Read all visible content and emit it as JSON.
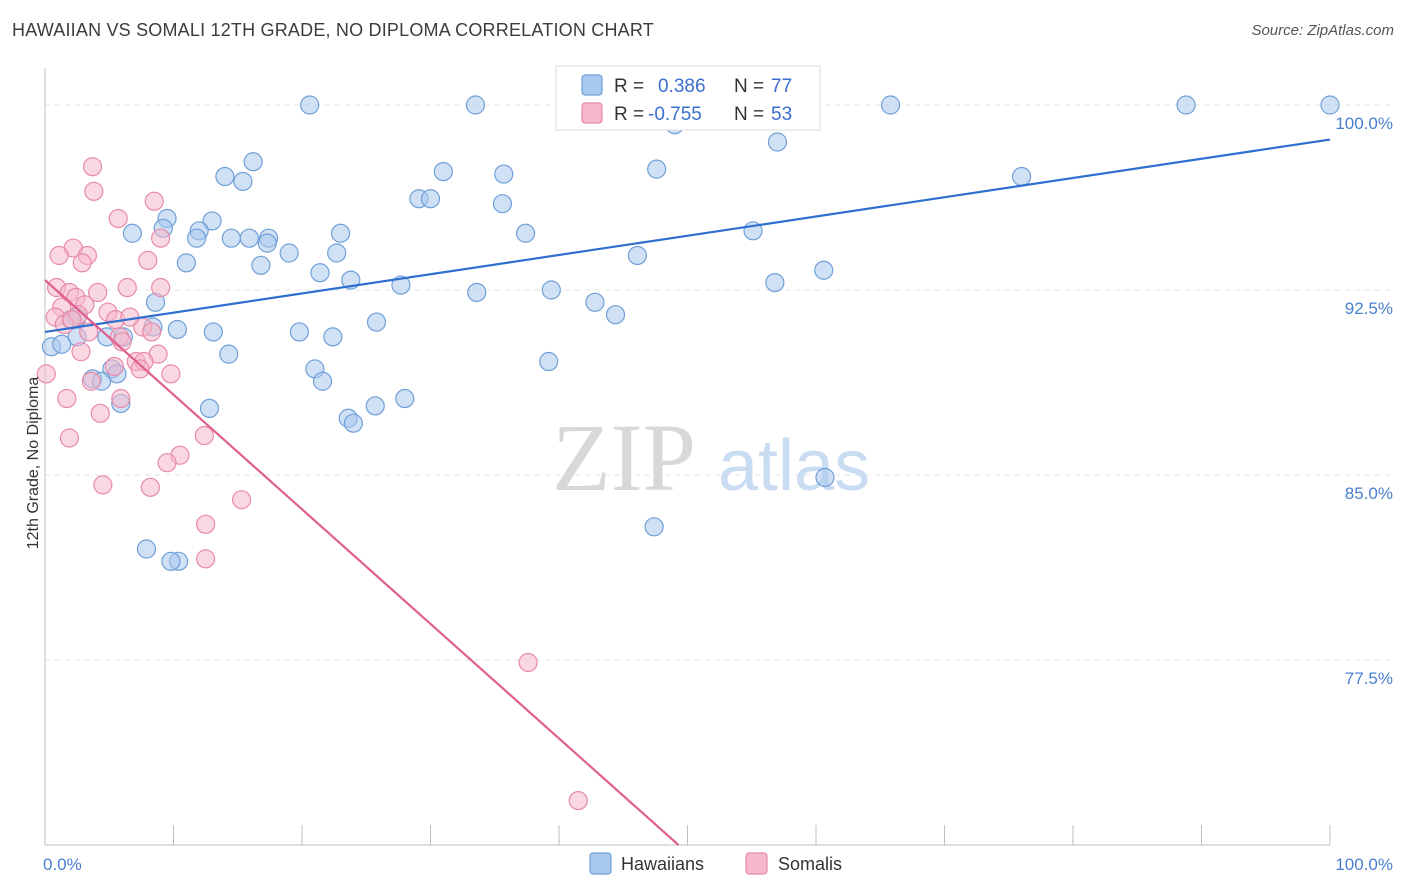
{
  "title": "HAWAIIAN VS SOMALI 12TH GRADE, NO DIPLOMA CORRELATION CHART",
  "source": "Source: ZipAtlas.com",
  "watermark": {
    "zip": "ZIP",
    "atlas": "atlas"
  },
  "colors": {
    "hawaiian_fill": "#a9c8ee",
    "hawaiian_stroke": "#6f9fd8",
    "hawaiian_line": "#2f6fcf",
    "somali_fill": "#f5b8cb",
    "somali_stroke": "#e88aa8",
    "somali_line": "#e0608e",
    "grid": "#e3e3e3",
    "tick_label": "#4a7fcf"
  },
  "legend": {
    "r_label": "R =",
    "n_label": "N =",
    "hawaiian": {
      "r": "0.386",
      "n": "77"
    },
    "somali": {
      "r": "-0.755",
      "n": "53"
    }
  },
  "chart_data": {
    "type": "scatter",
    "title": "HAWAIIAN VS SOMALI 12TH GRADE, NO DIPLOMA CORRELATION CHART",
    "xlabel": "",
    "ylabel": "12th Grade, No Diploma",
    "xlim": [
      0,
      100
    ],
    "ylim": [
      70.0,
      101.5
    ],
    "x_tick_labels": [
      "0.0%",
      "100.0%"
    ],
    "y_ticks": [
      77.5,
      85.0,
      92.5,
      100.0
    ],
    "y_tick_labels": [
      "77.5%",
      "85.0%",
      "92.5%",
      "100.0%"
    ],
    "grid": true,
    "legend_position": "top-center",
    "series": [
      {
        "name": "Hawaiians",
        "trend": {
          "x": [
            0,
            100
          ],
          "y": [
            90.8,
            98.6
          ]
        },
        "points": [
          [
            20.6,
            100.0
          ],
          [
            33.5,
            100.0
          ],
          [
            65.8,
            100.0
          ],
          [
            88.8,
            100.0
          ],
          [
            100.0,
            100.0
          ],
          [
            49.0,
            99.2
          ],
          [
            57.0,
            98.5
          ],
          [
            16.2,
            97.7
          ],
          [
            47.6,
            97.4
          ],
          [
            31.0,
            97.3
          ],
          [
            14.0,
            97.1
          ],
          [
            35.7,
            97.2
          ],
          [
            15.4,
            96.9
          ],
          [
            76.0,
            97.1
          ],
          [
            29.1,
            96.2
          ],
          [
            30.0,
            96.2
          ],
          [
            35.6,
            96.0
          ],
          [
            9.5,
            95.4
          ],
          [
            13.0,
            95.3
          ],
          [
            9.2,
            95.0
          ],
          [
            12.0,
            94.9
          ],
          [
            6.8,
            94.8
          ],
          [
            11.8,
            94.6
          ],
          [
            14.5,
            94.6
          ],
          [
            15.9,
            94.6
          ],
          [
            17.4,
            94.6
          ],
          [
            23.0,
            94.8
          ],
          [
            37.4,
            94.8
          ],
          [
            55.1,
            94.9
          ],
          [
            17.3,
            94.4
          ],
          [
            19.0,
            94.0
          ],
          [
            22.7,
            94.0
          ],
          [
            46.1,
            93.9
          ],
          [
            11.0,
            93.6
          ],
          [
            16.8,
            93.5
          ],
          [
            21.4,
            93.2
          ],
          [
            60.6,
            93.3
          ],
          [
            23.8,
            92.9
          ],
          [
            27.7,
            92.7
          ],
          [
            33.6,
            92.4
          ],
          [
            39.4,
            92.5
          ],
          [
            56.8,
            92.8
          ],
          [
            8.6,
            92.0
          ],
          [
            42.8,
            92.0
          ],
          [
            44.4,
            91.5
          ],
          [
            2.0,
            91.3
          ],
          [
            25.8,
            91.2
          ],
          [
            10.3,
            90.9
          ],
          [
            8.4,
            91.0
          ],
          [
            13.1,
            90.8
          ],
          [
            19.8,
            90.8
          ],
          [
            22.4,
            90.6
          ],
          [
            2.5,
            90.6
          ],
          [
            4.8,
            90.6
          ],
          [
            6.1,
            90.6
          ],
          [
            0.5,
            90.2
          ],
          [
            14.3,
            89.9
          ],
          [
            39.2,
            89.6
          ],
          [
            21.0,
            89.3
          ],
          [
            3.7,
            88.9
          ],
          [
            5.2,
            89.3
          ],
          [
            5.6,
            89.1
          ],
          [
            4.4,
            88.8
          ],
          [
            21.6,
            88.8
          ],
          [
            28.0,
            88.1
          ],
          [
            5.9,
            87.9
          ],
          [
            25.7,
            87.8
          ],
          [
            12.8,
            87.7
          ],
          [
            23.6,
            87.3
          ],
          [
            24.0,
            87.1
          ],
          [
            60.7,
            84.9
          ],
          [
            47.4,
            82.9
          ],
          [
            7.9,
            82.0
          ],
          [
            10.4,
            81.5
          ],
          [
            9.8,
            81.5
          ],
          [
            2.5,
            91.4
          ],
          [
            1.3,
            90.3
          ]
        ]
      },
      {
        "name": "Somalis",
        "trend": {
          "x": [
            0,
            49.3
          ],
          "y": [
            92.9,
            70.0
          ]
        },
        "points": [
          [
            3.7,
            97.5
          ],
          [
            3.8,
            96.5
          ],
          [
            8.5,
            96.1
          ],
          [
            5.7,
            95.4
          ],
          [
            9.0,
            94.6
          ],
          [
            2.2,
            94.2
          ],
          [
            1.1,
            93.9
          ],
          [
            3.3,
            93.9
          ],
          [
            8.0,
            93.7
          ],
          [
            2.9,
            93.6
          ],
          [
            0.9,
            92.6
          ],
          [
            6.4,
            92.6
          ],
          [
            9.0,
            92.6
          ],
          [
            1.9,
            92.4
          ],
          [
            4.1,
            92.4
          ],
          [
            2.4,
            92.2
          ],
          [
            3.1,
            91.9
          ],
          [
            1.3,
            91.8
          ],
          [
            2.6,
            91.5
          ],
          [
            0.8,
            91.4
          ],
          [
            4.9,
            91.6
          ],
          [
            1.5,
            91.1
          ],
          [
            7.6,
            91.0
          ],
          [
            5.5,
            91.3
          ],
          [
            3.4,
            90.8
          ],
          [
            5.8,
            90.6
          ],
          [
            6.0,
            90.4
          ],
          [
            8.3,
            90.8
          ],
          [
            2.8,
            90.0
          ],
          [
            8.8,
            89.9
          ],
          [
            7.1,
            89.6
          ],
          [
            7.7,
            89.6
          ],
          [
            9.8,
            89.1
          ],
          [
            0.1,
            89.1
          ],
          [
            7.4,
            89.3
          ],
          [
            5.4,
            89.4
          ],
          [
            3.6,
            88.8
          ],
          [
            5.9,
            88.1
          ],
          [
            1.7,
            88.1
          ],
          [
            4.3,
            87.5
          ],
          [
            12.4,
            86.6
          ],
          [
            1.9,
            86.5
          ],
          [
            10.5,
            85.8
          ],
          [
            9.5,
            85.5
          ],
          [
            4.5,
            84.6
          ],
          [
            8.2,
            84.5
          ],
          [
            15.3,
            84.0
          ],
          [
            12.5,
            83.0
          ],
          [
            12.5,
            81.6
          ],
          [
            37.6,
            77.4
          ],
          [
            41.5,
            71.8
          ],
          [
            2.1,
            91.3
          ],
          [
            6.6,
            91.4
          ]
        ]
      }
    ]
  }
}
